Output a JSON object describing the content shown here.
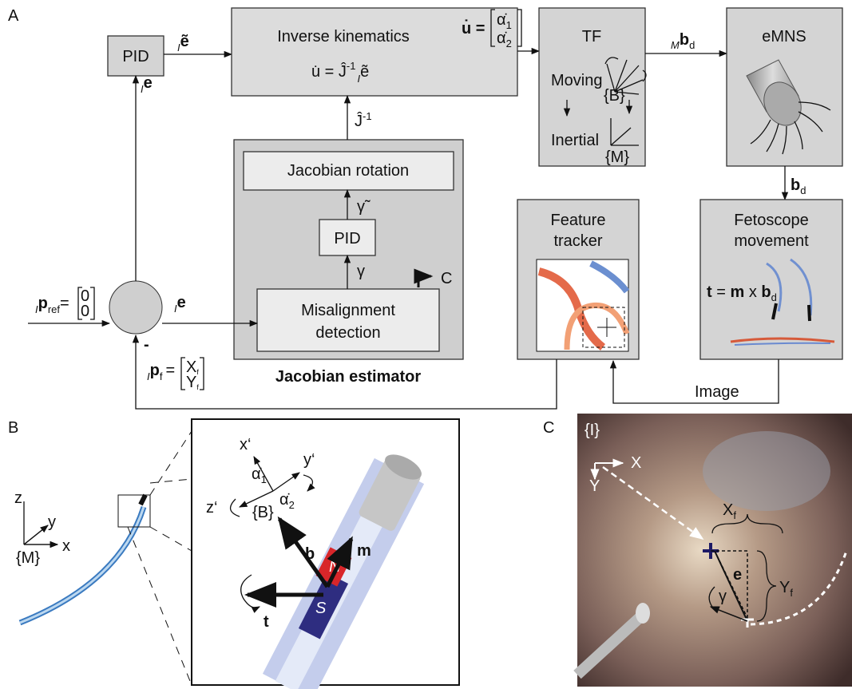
{
  "figure": {
    "panel_labels": [
      "A",
      "B",
      "C"
    ],
    "a": {
      "pid_outer": "PID",
      "e_tilde": {
        "frame": "I",
        "symbol": "ẽ"
      },
      "e_outer": {
        "frame": "I",
        "symbol": "e"
      },
      "inverse_kinematics": {
        "title": "Inverse kinematics",
        "lhs": "u̇ = Ĵ",
        "power": "-1",
        "frame": "I",
        "rhs": "ẽ"
      },
      "u_def": {
        "lhs": "u̇ =",
        "top": "α̇",
        "top_index": "1",
        "bottom": "α̇",
        "bottom_index": "2"
      },
      "j_inv": {
        "symbol": "Ĵ",
        "power": "-1"
      },
      "tf": {
        "title": "TF",
        "moving": "Moving",
        "inertial": "Inertial",
        "frame_b": "{B}",
        "frame_m": "{M}"
      },
      "b_moving": {
        "frame": "M",
        "symbol": "b",
        "index": "d"
      },
      "emns": "eMNS",
      "b_d": {
        "symbol": "b",
        "index": "d"
      },
      "fetoscope": {
        "title": [
          "Fetoscope",
          "movement"
        ],
        "t": "t",
        "eq": "=",
        "m": "m",
        "times": "x",
        "b": "b",
        "index": "d"
      },
      "feature_tracker": [
        "Feature",
        "tracker"
      ],
      "image": "Image",
      "jacobian_rotation": "Jacobian rotation",
      "pid_inner": "PID",
      "gamma_tilde": "γ̃",
      "gamma": "γ",
      "camera_frame": "C",
      "misalignment": [
        "Misalignment",
        "detection"
      ],
      "jacobian_estimator": "Jacobian estimator",
      "e_inner": {
        "frame": "I",
        "symbol": "e"
      },
      "p_ref": {
        "frame": "I",
        "symbol": "p",
        "index": "ref",
        "eq": "=",
        "top": "0",
        "bottom": "0"
      },
      "p_f": {
        "frame": "I",
        "symbol": "p",
        "index": "f",
        "eq": "=",
        "top": "X",
        "top_index": "f",
        "bottom": "Y",
        "bottom_index": "f"
      },
      "minus": "-"
    },
    "b": {
      "axes_m": {
        "z": "z",
        "y": "y",
        "x": "x",
        "frame": "{M}"
      },
      "axes_b": {
        "x": "x‘",
        "y": "y‘",
        "z": "z‘",
        "alpha1": "α̇",
        "alpha1_index": "1",
        "alpha2": "α̇",
        "alpha2_index": "2",
        "frame": "{B}"
      },
      "b": "b",
      "m": "m",
      "north": "N",
      "south": "S",
      "t": "t"
    },
    "c": {
      "frame": "{I}",
      "x": "X",
      "y": "Y",
      "x_f": "X",
      "x_f_index": "f",
      "e": "e",
      "y_f": "Y",
      "y_f_index": "f",
      "gamma": "γ"
    }
  }
}
